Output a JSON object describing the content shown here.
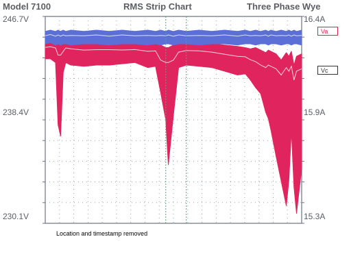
{
  "header": {
    "model": "Model 7100",
    "title": "RMS Strip Chart",
    "config": "Three Phase Wye"
  },
  "legend": {
    "va": "Va",
    "vc": "Vc"
  },
  "footnote": "Location and timestamp removed",
  "colors": {
    "va": "#e0245e",
    "vc": "#5b6fd6",
    "grid": "#9aa3ad",
    "marker": "#22c55e"
  },
  "chart_data": {
    "type": "area",
    "title": "RMS Strip Chart",
    "left_axis": {
      "ticks": [
        "246.7V",
        "238.4V",
        "230.1V"
      ],
      "range": [
        230.1,
        246.7
      ],
      "unit": "V"
    },
    "right_axis": {
      "ticks": [
        "16.4A",
        "15.9A",
        "15.3A"
      ],
      "unit": "A"
    },
    "grid": true,
    "x": [
      0,
      2,
      4,
      5,
      6,
      7,
      8,
      10,
      15,
      20,
      25,
      30,
      35,
      40,
      43,
      45,
      47,
      48,
      50,
      52,
      55,
      60,
      65,
      70,
      75,
      78,
      80,
      82,
      84,
      86,
      87,
      88,
      90,
      92,
      94,
      95,
      96,
      97,
      98,
      100
    ],
    "series": [
      {
        "name": "Va",
        "type": "band",
        "upper": [
          244.7,
          244.8,
          244.8,
          244.8,
          244.8,
          244.8,
          244.8,
          244.8,
          244.7,
          244.7,
          244.7,
          244.6,
          244.6,
          244.6,
          244.6,
          244.4,
          244.2,
          244.2,
          244.4,
          244.5,
          244.6,
          244.6,
          244.5,
          244.4,
          244.3,
          244.2,
          244.1,
          244.2,
          244.0,
          243.8,
          244.0,
          243.9,
          243.7,
          243.2,
          243.8,
          243.5,
          243.9,
          242.8,
          243.5,
          243.7
        ],
        "lower": [
          243.3,
          243.3,
          243.0,
          238.0,
          237.1,
          242.2,
          243.0,
          242.8,
          242.7,
          242.8,
          242.8,
          242.9,
          243.0,
          242.6,
          242.7,
          240.6,
          238.4,
          234.8,
          238.8,
          242.6,
          242.8,
          242.7,
          242.6,
          242.3,
          242.0,
          242.1,
          241.6,
          241.0,
          240.5,
          239.0,
          238.5,
          237.6,
          235.5,
          233.5,
          231.5,
          233.5,
          237.5,
          233.0,
          230.9,
          234.5
        ]
      },
      {
        "name": "Vc",
        "type": "band",
        "upper": [
          245.5,
          245.6,
          245.5,
          245.6,
          245.5,
          245.6,
          245.5,
          245.6,
          245.5,
          245.6,
          245.5,
          245.6,
          245.5,
          245.6,
          245.5,
          245.6,
          245.5,
          245.6,
          245.5,
          245.6,
          245.5,
          245.6,
          245.5,
          245.6,
          245.5,
          245.6,
          245.5,
          245.6,
          245.5,
          245.6,
          245.5,
          245.6,
          245.5,
          245.6,
          245.5,
          245.6,
          245.5,
          245.6,
          245.5,
          245.6
        ],
        "lower": [
          244.5,
          244.6,
          244.4,
          244.5,
          244.4,
          244.5,
          244.5,
          244.4,
          244.5,
          244.5,
          244.4,
          244.5,
          244.5,
          244.4,
          244.5,
          244.4,
          244.5,
          244.5,
          244.4,
          244.5,
          244.5,
          244.4,
          244.5,
          244.5,
          244.4,
          244.5,
          244.5,
          244.4,
          244.5,
          244.5,
          244.4,
          244.5,
          244.5,
          244.4,
          244.5,
          244.5,
          244.4,
          244.5,
          244.5,
          244.4
        ]
      }
    ],
    "markers_x": [
      47,
      55
    ]
  }
}
